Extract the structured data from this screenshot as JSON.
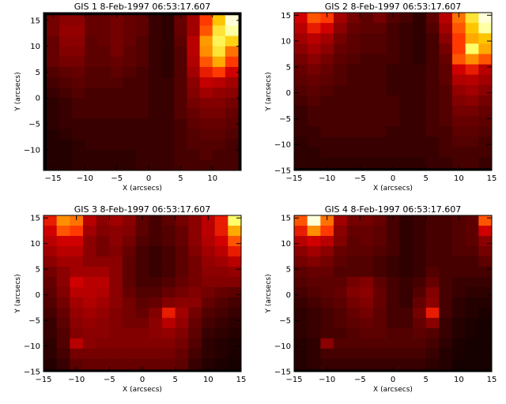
{
  "chart_data": [
    {
      "type": "heatmap",
      "title": "GIS 1  8-Feb-1997 06:53:17.607",
      "xlabel": "X (arcsecs)",
      "ylabel": "Y (arcsecs)",
      "xlim": [
        -16.5,
        14.5
      ],
      "ylim": [
        -14,
        16.5
      ],
      "xticks": [
        -15,
        -10,
        -5,
        0,
        5,
        10
      ],
      "yticks": [
        -10,
        -5,
        0,
        5,
        10,
        15
      ],
      "x_first": -15,
      "y_first": 15,
      "cell_size": 2,
      "colormap": "red-temperature (black-red-orange-white)",
      "intensity": [
        [
          0.25,
          0.3,
          0.3,
          0.22,
          0.22,
          0.25,
          0.22,
          0.2,
          0.12,
          0.1,
          0.22,
          0.35,
          0.55,
          0.8,
          1.0
        ],
        [
          0.25,
          0.32,
          0.32,
          0.22,
          0.22,
          0.25,
          0.22,
          0.2,
          0.12,
          0.1,
          0.22,
          0.35,
          0.6,
          0.85,
          0.95
        ],
        [
          0.22,
          0.3,
          0.3,
          0.2,
          0.22,
          0.25,
          0.22,
          0.18,
          0.12,
          0.1,
          0.2,
          0.4,
          0.72,
          0.88,
          0.82
        ],
        [
          0.22,
          0.28,
          0.28,
          0.2,
          0.2,
          0.25,
          0.2,
          0.18,
          0.12,
          0.1,
          0.18,
          0.4,
          0.7,
          0.85,
          0.65
        ],
        [
          0.22,
          0.25,
          0.25,
          0.2,
          0.2,
          0.22,
          0.2,
          0.18,
          0.12,
          0.1,
          0.18,
          0.38,
          0.6,
          0.75,
          0.55
        ],
        [
          0.18,
          0.2,
          0.22,
          0.18,
          0.18,
          0.2,
          0.18,
          0.15,
          0.12,
          0.1,
          0.18,
          0.35,
          0.5,
          0.55,
          0.45
        ],
        [
          0.15,
          0.18,
          0.2,
          0.18,
          0.18,
          0.18,
          0.15,
          0.15,
          0.12,
          0.12,
          0.18,
          0.3,
          0.42,
          0.4,
          0.35
        ],
        [
          0.12,
          0.15,
          0.18,
          0.15,
          0.15,
          0.15,
          0.15,
          0.15,
          0.12,
          0.12,
          0.18,
          0.28,
          0.35,
          0.32,
          0.3
        ],
        [
          0.1,
          0.12,
          0.15,
          0.15,
          0.15,
          0.15,
          0.15,
          0.15,
          0.12,
          0.12,
          0.18,
          0.25,
          0.28,
          0.28,
          0.25
        ],
        [
          0.1,
          0.12,
          0.15,
          0.15,
          0.15,
          0.15,
          0.15,
          0.15,
          0.12,
          0.12,
          0.18,
          0.22,
          0.25,
          0.25,
          0.22
        ],
        [
          0.1,
          0.12,
          0.12,
          0.12,
          0.12,
          0.12,
          0.12,
          0.12,
          0.12,
          0.12,
          0.15,
          0.2,
          0.22,
          0.22,
          0.2
        ],
        [
          0.08,
          0.1,
          0.12,
          0.12,
          0.12,
          0.12,
          0.12,
          0.12,
          0.12,
          0.12,
          0.15,
          0.18,
          0.2,
          0.2,
          0.18
        ],
        [
          0.08,
          0.08,
          0.1,
          0.12,
          0.12,
          0.12,
          0.12,
          0.12,
          0.12,
          0.12,
          0.15,
          0.18,
          0.18,
          0.18,
          0.15
        ],
        [
          0.08,
          0.08,
          0.1,
          0.1,
          0.1,
          0.1,
          0.1,
          0.12,
          0.12,
          0.12,
          0.15,
          0.15,
          0.18,
          0.15,
          0.15
        ],
        [
          0.08,
          0.08,
          0.1,
          0.1,
          0.1,
          0.1,
          0.1,
          0.12,
          0.12,
          0.12,
          0.15,
          0.15,
          0.15,
          0.15,
          0.15
        ]
      ]
    },
    {
      "type": "heatmap",
      "title": "GIS 2  8-Feb-1997 06:53:17.607",
      "xlabel": "X (arcsecs)",
      "ylabel": "Y (arcsecs)",
      "xlim": [
        -15,
        15
      ],
      "ylim": [
        -15,
        15.5
      ],
      "xticks": [
        -15,
        -10,
        -5,
        0,
        5,
        10,
        15
      ],
      "yticks": [
        -15,
        -10,
        -5,
        0,
        5,
        10,
        15
      ],
      "x_first": -14,
      "y_first": 14.5,
      "cell_size": 2,
      "colormap": "red-temperature (black-red-orange-white)",
      "intensity": [
        [
          0.45,
          0.6,
          0.55,
          0.35,
          0.25,
          0.2,
          0.25,
          0.18,
          0.15,
          0.1,
          0.2,
          0.4,
          0.65,
          0.85,
          1.0
        ],
        [
          0.4,
          0.5,
          0.45,
          0.3,
          0.22,
          0.2,
          0.2,
          0.15,
          0.12,
          0.1,
          0.18,
          0.35,
          0.6,
          0.8,
          0.95
        ],
        [
          0.35,
          0.4,
          0.35,
          0.25,
          0.2,
          0.18,
          0.18,
          0.15,
          0.12,
          0.1,
          0.15,
          0.3,
          0.55,
          0.75,
          0.8
        ],
        [
          0.3,
          0.35,
          0.3,
          0.22,
          0.2,
          0.18,
          0.18,
          0.15,
          0.12,
          0.1,
          0.15,
          0.25,
          0.55,
          0.9,
          0.75
        ],
        [
          0.25,
          0.3,
          0.25,
          0.2,
          0.18,
          0.15,
          0.15,
          0.15,
          0.12,
          0.1,
          0.15,
          0.22,
          0.6,
          0.7,
          0.6
        ],
        [
          0.22,
          0.25,
          0.22,
          0.18,
          0.15,
          0.15,
          0.15,
          0.12,
          0.12,
          0.12,
          0.15,
          0.2,
          0.45,
          0.5,
          0.4
        ],
        [
          0.2,
          0.22,
          0.2,
          0.18,
          0.15,
          0.15,
          0.15,
          0.12,
          0.12,
          0.12,
          0.15,
          0.2,
          0.38,
          0.4,
          0.35
        ],
        [
          0.18,
          0.2,
          0.18,
          0.15,
          0.15,
          0.15,
          0.15,
          0.12,
          0.12,
          0.12,
          0.15,
          0.18,
          0.32,
          0.35,
          0.3
        ],
        [
          0.15,
          0.18,
          0.15,
          0.15,
          0.15,
          0.15,
          0.15,
          0.15,
          0.12,
          0.12,
          0.15,
          0.18,
          0.28,
          0.3,
          0.25
        ],
        [
          0.12,
          0.15,
          0.15,
          0.15,
          0.15,
          0.15,
          0.15,
          0.15,
          0.12,
          0.12,
          0.15,
          0.18,
          0.25,
          0.25,
          0.22
        ],
        [
          0.12,
          0.15,
          0.15,
          0.15,
          0.15,
          0.15,
          0.15,
          0.15,
          0.12,
          0.12,
          0.15,
          0.18,
          0.22,
          0.22,
          0.2
        ],
        [
          0.12,
          0.12,
          0.15,
          0.15,
          0.15,
          0.15,
          0.15,
          0.12,
          0.12,
          0.12,
          0.15,
          0.15,
          0.2,
          0.2,
          0.18
        ],
        [
          0.1,
          0.12,
          0.12,
          0.12,
          0.12,
          0.12,
          0.12,
          0.12,
          0.12,
          0.12,
          0.12,
          0.15,
          0.18,
          0.18,
          0.15
        ],
        [
          0.1,
          0.1,
          0.12,
          0.12,
          0.12,
          0.12,
          0.12,
          0.12,
          0.12,
          0.12,
          0.12,
          0.15,
          0.15,
          0.15,
          0.15
        ],
        [
          0.1,
          0.1,
          0.1,
          0.1,
          0.1,
          0.1,
          0.1,
          0.1,
          0.1,
          0.1,
          0.12,
          0.12,
          0.15,
          0.15,
          0.12
        ]
      ]
    },
    {
      "type": "heatmap",
      "title": "GIS 3  8-Feb-1997 06:53:17.607",
      "xlabel": "X (arcsecs)",
      "ylabel": "Y (arcsecs)",
      "xlim": [
        -15,
        15
      ],
      "ylim": [
        -15,
        15.5
      ],
      "xticks": [
        -15,
        -10,
        -5,
        0,
        5,
        10,
        15
      ],
      "yticks": [
        -15,
        -10,
        -5,
        0,
        5,
        10,
        15
      ],
      "x_first": -14,
      "y_first": 14.5,
      "cell_size": 2,
      "colormap": "red-temperature (black-red-orange-white)",
      "intensity": [
        [
          0.5,
          0.7,
          0.65,
          0.4,
          0.3,
          0.35,
          0.3,
          0.2,
          0.15,
          0.2,
          0.25,
          0.3,
          0.4,
          0.5,
          0.9
        ],
        [
          0.45,
          0.6,
          0.55,
          0.35,
          0.28,
          0.3,
          0.28,
          0.2,
          0.15,
          0.18,
          0.22,
          0.3,
          0.4,
          0.5,
          0.75
        ],
        [
          0.4,
          0.45,
          0.45,
          0.3,
          0.25,
          0.3,
          0.25,
          0.18,
          0.15,
          0.18,
          0.22,
          0.3,
          0.38,
          0.45,
          0.6
        ],
        [
          0.35,
          0.4,
          0.4,
          0.3,
          0.25,
          0.28,
          0.22,
          0.15,
          0.12,
          0.15,
          0.2,
          0.28,
          0.35,
          0.4,
          0.5
        ],
        [
          0.3,
          0.35,
          0.35,
          0.3,
          0.3,
          0.3,
          0.2,
          0.15,
          0.12,
          0.15,
          0.2,
          0.25,
          0.32,
          0.35,
          0.4
        ],
        [
          0.25,
          0.3,
          0.35,
          0.35,
          0.35,
          0.3,
          0.2,
          0.15,
          0.12,
          0.15,
          0.2,
          0.25,
          0.3,
          0.3,
          0.32
        ],
        [
          0.22,
          0.3,
          0.45,
          0.4,
          0.4,
          0.3,
          0.2,
          0.15,
          0.15,
          0.18,
          0.22,
          0.25,
          0.28,
          0.28,
          0.28
        ],
        [
          0.2,
          0.28,
          0.4,
          0.4,
          0.38,
          0.3,
          0.22,
          0.18,
          0.18,
          0.22,
          0.25,
          0.28,
          0.25,
          0.22,
          0.2
        ],
        [
          0.18,
          0.25,
          0.35,
          0.38,
          0.35,
          0.3,
          0.25,
          0.2,
          0.22,
          0.28,
          0.3,
          0.3,
          0.22,
          0.18,
          0.15
        ],
        [
          0.15,
          0.22,
          0.32,
          0.35,
          0.32,
          0.28,
          0.25,
          0.22,
          0.28,
          0.5,
          0.35,
          0.25,
          0.18,
          0.15,
          0.12
        ],
        [
          0.12,
          0.2,
          0.3,
          0.32,
          0.3,
          0.28,
          0.25,
          0.25,
          0.3,
          0.4,
          0.32,
          0.22,
          0.15,
          0.12,
          0.1
        ],
        [
          0.12,
          0.18,
          0.28,
          0.3,
          0.3,
          0.28,
          0.28,
          0.28,
          0.3,
          0.32,
          0.28,
          0.2,
          0.12,
          0.1,
          0.08
        ],
        [
          0.1,
          0.18,
          0.4,
          0.3,
          0.28,
          0.28,
          0.28,
          0.28,
          0.28,
          0.28,
          0.25,
          0.18,
          0.1,
          0.08,
          0.06
        ],
        [
          0.1,
          0.15,
          0.25,
          0.25,
          0.25,
          0.25,
          0.25,
          0.25,
          0.25,
          0.25,
          0.22,
          0.15,
          0.1,
          0.08,
          0.06
        ],
        [
          0.08,
          0.12,
          0.2,
          0.22,
          0.22,
          0.22,
          0.22,
          0.22,
          0.22,
          0.22,
          0.2,
          0.12,
          0.08,
          0.06,
          0.05
        ]
      ]
    },
    {
      "type": "heatmap",
      "title": "GIS 4  8-Feb-1997 06:53:17.607",
      "xlabel": "X (arcsecs)",
      "ylabel": "Y (arcsecs)",
      "xlim": [
        -15,
        15
      ],
      "ylim": [
        -15,
        15.5
      ],
      "xticks": [
        -15,
        -10,
        -5,
        0,
        5,
        10,
        15
      ],
      "yticks": [
        -15,
        -10,
        -5,
        0,
        5,
        10,
        15
      ],
      "x_first": -14,
      "y_first": 14.5,
      "cell_size": 2,
      "colormap": "red-temperature (black-red-orange-white)",
      "intensity": [
        [
          0.6,
          1.0,
          0.65,
          0.35,
          0.25,
          0.25,
          0.22,
          0.15,
          0.1,
          0.12,
          0.15,
          0.15,
          0.18,
          0.2,
          0.6
        ],
        [
          0.5,
          0.7,
          0.55,
          0.3,
          0.22,
          0.22,
          0.2,
          0.15,
          0.1,
          0.12,
          0.15,
          0.15,
          0.18,
          0.2,
          0.45
        ],
        [
          0.4,
          0.45,
          0.4,
          0.28,
          0.2,
          0.22,
          0.2,
          0.15,
          0.1,
          0.12,
          0.15,
          0.15,
          0.18,
          0.2,
          0.3
        ],
        [
          0.3,
          0.35,
          0.3,
          0.22,
          0.2,
          0.2,
          0.18,
          0.15,
          0.1,
          0.12,
          0.15,
          0.15,
          0.18,
          0.18,
          0.25
        ],
        [
          0.25,
          0.28,
          0.25,
          0.2,
          0.18,
          0.18,
          0.15,
          0.12,
          0.1,
          0.12,
          0.15,
          0.15,
          0.15,
          0.15,
          0.2
        ],
        [
          0.2,
          0.22,
          0.22,
          0.18,
          0.18,
          0.18,
          0.15,
          0.12,
          0.1,
          0.12,
          0.18,
          0.15,
          0.15,
          0.15,
          0.15
        ],
        [
          0.18,
          0.2,
          0.2,
          0.2,
          0.25,
          0.28,
          0.2,
          0.15,
          0.12,
          0.15,
          0.22,
          0.15,
          0.12,
          0.12,
          0.12
        ],
        [
          0.15,
          0.18,
          0.2,
          0.22,
          0.28,
          0.3,
          0.22,
          0.15,
          0.12,
          0.18,
          0.28,
          0.15,
          0.12,
          0.1,
          0.1
        ],
        [
          0.12,
          0.15,
          0.18,
          0.2,
          0.25,
          0.28,
          0.22,
          0.15,
          0.12,
          0.22,
          0.3,
          0.15,
          0.1,
          0.08,
          0.08
        ],
        [
          0.1,
          0.12,
          0.15,
          0.18,
          0.22,
          0.25,
          0.2,
          0.15,
          0.15,
          0.25,
          0.5,
          0.15,
          0.1,
          0.08,
          0.06
        ],
        [
          0.1,
          0.12,
          0.15,
          0.18,
          0.2,
          0.22,
          0.2,
          0.15,
          0.15,
          0.22,
          0.3,
          0.12,
          0.08,
          0.06,
          0.05
        ],
        [
          0.1,
          0.12,
          0.15,
          0.15,
          0.18,
          0.2,
          0.2,
          0.18,
          0.18,
          0.2,
          0.18,
          0.12,
          0.08,
          0.06,
          0.05
        ],
        [
          0.08,
          0.1,
          0.3,
          0.18,
          0.18,
          0.18,
          0.18,
          0.18,
          0.18,
          0.18,
          0.15,
          0.1,
          0.06,
          0.05,
          0.05
        ],
        [
          0.08,
          0.1,
          0.15,
          0.15,
          0.15,
          0.15,
          0.15,
          0.15,
          0.15,
          0.15,
          0.12,
          0.08,
          0.06,
          0.05,
          0.05
        ],
        [
          0.08,
          0.1,
          0.12,
          0.12,
          0.12,
          0.12,
          0.12,
          0.12,
          0.12,
          0.12,
          0.1,
          0.08,
          0.05,
          0.05,
          0.05
        ]
      ]
    }
  ]
}
